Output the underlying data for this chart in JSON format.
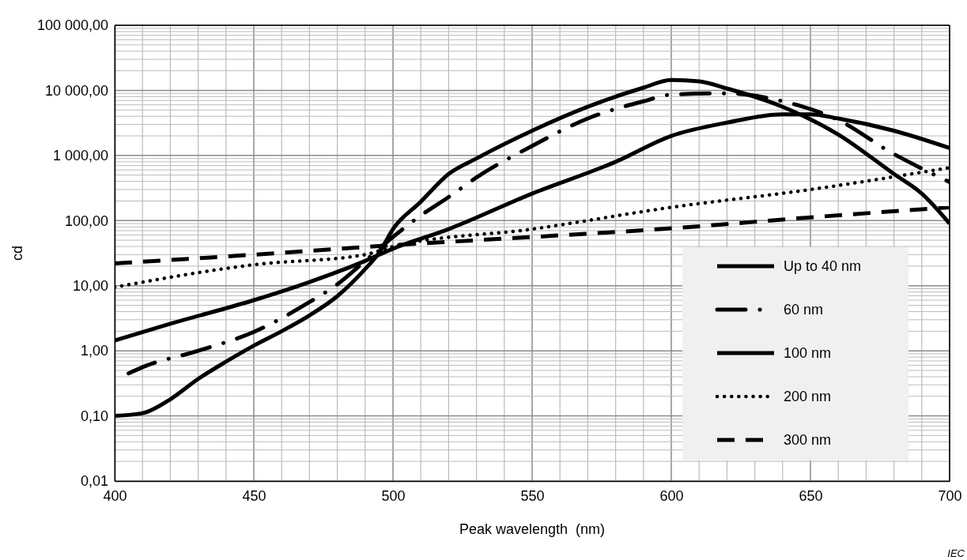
{
  "chart_data": {
    "type": "line",
    "xlabel": "Peak wavelength  (nm)",
    "ylabel": "cd",
    "log": "y",
    "grid": true,
    "legend": "bottom right",
    "xlim": [
      400,
      700
    ],
    "xticks": [
      400,
      450,
      500,
      550,
      600,
      650,
      700
    ],
    "ylim": [
      0.01,
      100000
    ],
    "yticks": [
      {
        "value": 0.01,
        "label": "0,01"
      },
      {
        "value": 0.1,
        "label": "0,10"
      },
      {
        "value": 1,
        "label": "1,00"
      },
      {
        "value": 10,
        "label": "10,00"
      },
      {
        "value": 100,
        "label": "100,00"
      },
      {
        "value": 1000,
        "label": "1 000,00"
      },
      {
        "value": 10000,
        "label": "10 000,00"
      },
      {
        "value": 100000,
        "label": "100 000,00"
      }
    ],
    "annotations": [
      "IEC"
    ],
    "series": [
      {
        "name": "Up to 40 nm",
        "color": "#000000",
        "line_style": "solid",
        "x": [
          400,
          410,
          420,
          430,
          440,
          450,
          460,
          470,
          480,
          490,
          495,
          500,
          510,
          520,
          530,
          550,
          570,
          590,
          600,
          610,
          620,
          640,
          660,
          680,
          690,
          700
        ],
        "values": [
          0.1,
          0.11,
          0.18,
          0.37,
          0.68,
          1.2,
          2,
          3.5,
          6.9,
          18,
          32,
          74,
          195,
          520,
          900,
          2400,
          5600,
          11000,
          14500,
          13800,
          10700,
          5600,
          2100,
          520,
          260,
          90
        ]
      },
      {
        "name": "60 nm",
        "color": "#000000",
        "line_style": "dashdot",
        "x": [
          405,
          410,
          430,
          450,
          470,
          480,
          490,
          500,
          510,
          520,
          530,
          550,
          570,
          590,
          600,
          620,
          640,
          660,
          680,
          690,
          700
        ],
        "values": [
          0.45,
          0.56,
          1,
          1.95,
          5.6,
          10.5,
          24,
          56,
          120,
          230,
          460,
          1400,
          3700,
          6800,
          8600,
          9000,
          6800,
          3500,
          1050,
          630,
          390
        ]
      },
      {
        "name": "100 nm",
        "color": "#000000",
        "line_style": "solid",
        "x": [
          400,
          420,
          450,
          470,
          490,
          500,
          520,
          550,
          580,
          600,
          620,
          640,
          650,
          660,
          680,
          700
        ],
        "values": [
          1.44,
          2.6,
          6,
          11.4,
          24,
          37,
          74,
          260,
          800,
          2000,
          3200,
          4300,
          4300,
          3700,
          2400,
          1300
        ]
      },
      {
        "name": "200 nm",
        "color": "#000000",
        "line_style": "dotted",
        "x": [
          400,
          450,
          490,
          500,
          550,
          600,
          650,
          700
        ],
        "values": [
          9.5,
          21,
          30,
          40,
          74,
          160,
          300,
          650
        ]
      },
      {
        "name": "300 nm",
        "color": "#000000",
        "line_style": "dashed",
        "x": [
          400,
          450,
          500,
          550,
          600,
          650,
          700
        ],
        "values": [
          22,
          30,
          42,
          56,
          76,
          112,
          160
        ]
      }
    ]
  }
}
